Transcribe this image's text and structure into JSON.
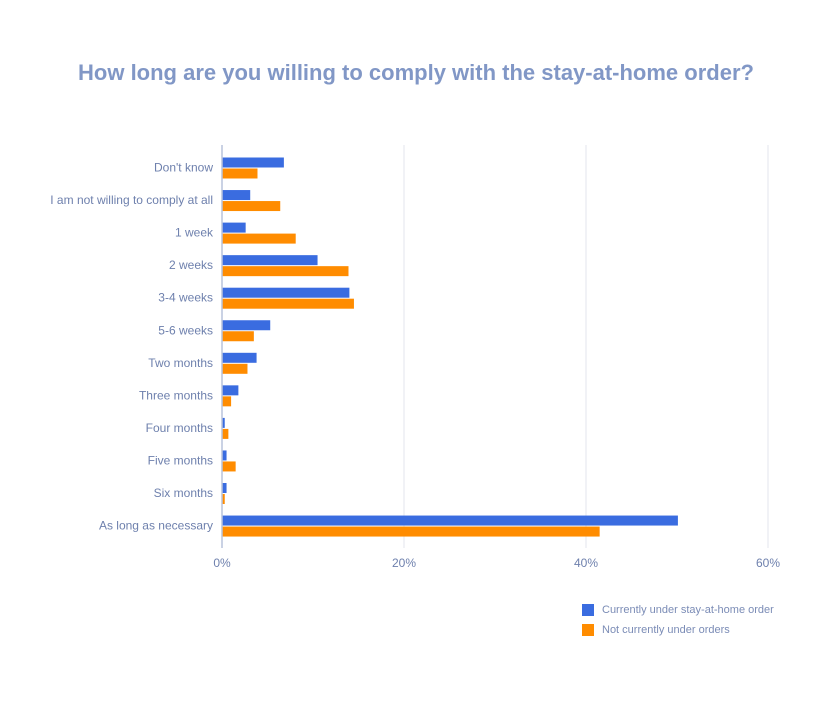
{
  "chart_data": {
    "type": "bar",
    "orientation": "horizontal",
    "title": "How long are you willing to comply with the stay-at-home order?",
    "categories": [
      "Don't know",
      "I am not willing to comply at all",
      "1 week",
      "2 weeks",
      "3-4 weeks",
      "5-6 weeks",
      "Two months",
      "Three months",
      "Four months",
      "Five months",
      "Six months",
      "As long as necessary"
    ],
    "series": [
      {
        "name": "Currently under stay-at-home order",
        "color": "#3a6ce0",
        "values": [
          6.8,
          3.1,
          2.6,
          10.5,
          14.0,
          5.3,
          3.8,
          1.8,
          0.3,
          0.5,
          0.5,
          50.1
        ]
      },
      {
        "name": "Not currently under orders",
        "color": "#ff8c00",
        "values": [
          3.9,
          6.4,
          8.1,
          13.9,
          14.5,
          3.5,
          2.8,
          1.0,
          0.7,
          1.5,
          0.3,
          41.5
        ]
      }
    ],
    "xlim": [
      0,
      60
    ],
    "xticks": [
      0,
      20,
      40,
      60
    ],
    "xtick_labels": [
      "0%",
      "20%",
      "40%",
      "60%"
    ],
    "grid": true,
    "legend": "bottom-right"
  }
}
